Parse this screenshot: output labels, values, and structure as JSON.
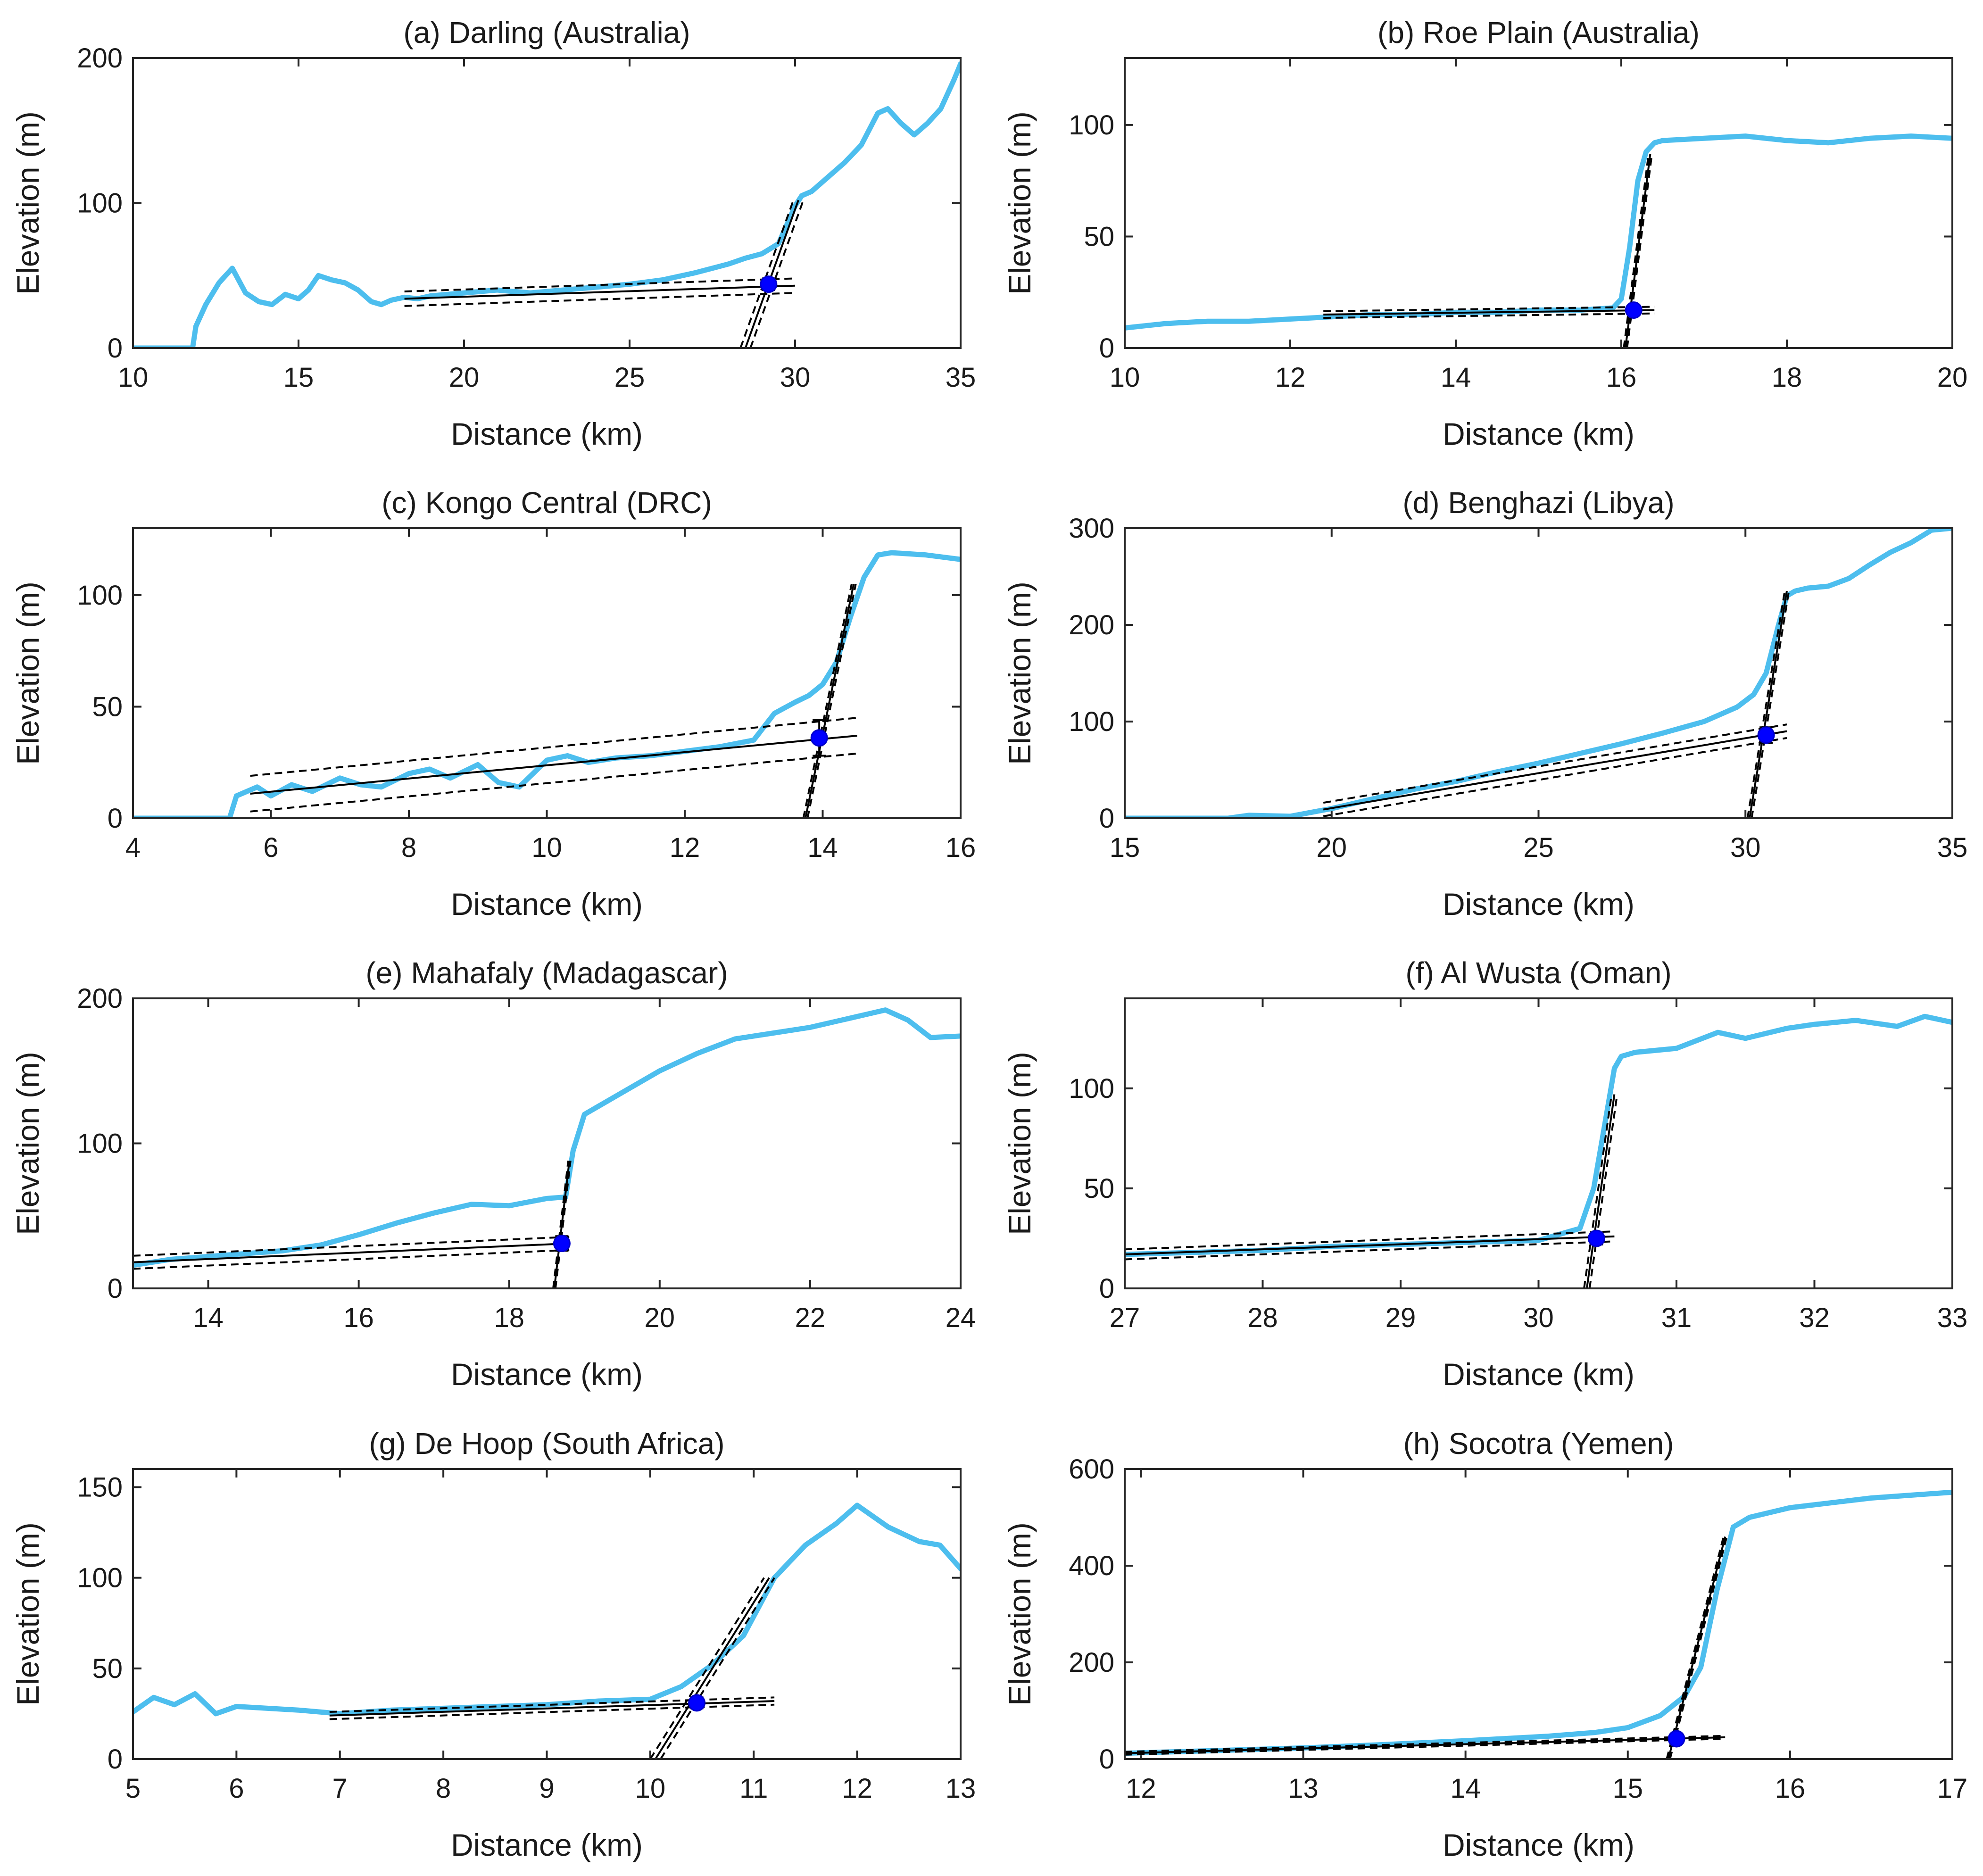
{
  "chart_data": [
    {
      "type": "line",
      "title": "(a) Darling (Australia)",
      "xlabel": "Distance (km)",
      "ylabel": "Elevation (m)",
      "xlim": [
        10,
        35
      ],
      "ylim": [
        0,
        200
      ],
      "xticks": [
        10,
        15,
        20,
        25,
        30,
        35
      ],
      "yticks": [
        0,
        100,
        200
      ],
      "series": [
        {
          "x": [
            10,
            11.8,
            11.9,
            12.2,
            12.6,
            13.0,
            13.4,
            13.8,
            14.2,
            14.6,
            15.0,
            15.3,
            15.6,
            16.0,
            16.4,
            16.8,
            17.2,
            17.5,
            17.8,
            18.2,
            18.6,
            19.0,
            20.0,
            21.0,
            22.0,
            23.0,
            24.0,
            25.0,
            26.0,
            27.0,
            28.0,
            28.5,
            29.0,
            29.5,
            30.0,
            30.2,
            30.5,
            31.0,
            31.5,
            32.0,
            32.5,
            32.8,
            33.2,
            33.6,
            34.0,
            34.4,
            34.8,
            35.0
          ],
          "y": [
            0,
            0,
            15,
            30,
            45,
            55,
            38,
            32,
            30,
            37,
            34,
            40,
            50,
            47,
            45,
            40,
            32,
            30,
            33,
            35,
            34,
            36,
            38,
            40,
            38,
            40,
            42,
            44,
            47,
            52,
            58,
            62,
            65,
            72,
            98,
            105,
            108,
            118,
            128,
            140,
            162,
            165,
            155,
            147,
            155,
            165,
            185,
            196
          ]
        }
      ],
      "fit_lower": {
        "x": [
          18.2,
          30.0
        ],
        "y": [
          34,
          43
        ],
        "ci": 5
      },
      "fit_upper": {
        "x": [
          28.5,
          30.1
        ],
        "y": [
          0,
          102
        ],
        "ci_x": 0.15
      },
      "intersection": {
        "x": 29.2,
        "y": 44,
        "err": 4
      }
    },
    {
      "type": "line",
      "title": "(b) Roe Plain (Australia)",
      "xlabel": "Distance (km)",
      "ylabel": "Elevation (m)",
      "xlim": [
        10,
        20
      ],
      "ylim": [
        0,
        130
      ],
      "xticks": [
        10,
        12,
        14,
        16,
        18,
        20
      ],
      "yticks": [
        0,
        50,
        100
      ],
      "series": [
        {
          "x": [
            10,
            10.5,
            11.0,
            11.5,
            12.0,
            12.5,
            13.0,
            13.5,
            14.0,
            14.5,
            15.0,
            15.5,
            15.9,
            16.0,
            16.1,
            16.2,
            16.3,
            16.4,
            16.5,
            17.0,
            17.5,
            18.0,
            18.5,
            19.0,
            19.5,
            20.0
          ],
          "y": [
            9,
            11,
            12,
            12,
            13,
            14,
            15,
            15,
            16,
            16,
            17,
            17,
            18,
            22,
            45,
            75,
            88,
            92,
            93,
            94,
            95,
            93,
            92,
            94,
            95,
            94
          ]
        }
      ],
      "fit_lower": {
        "x": [
          12.4,
          16.4
        ],
        "y": [
          15,
          17
        ],
        "ci": 1.5
      },
      "fit_upper": {
        "x": [
          16.05,
          16.35
        ],
        "y": [
          0,
          87
        ],
        "ci_x": 0.02
      },
      "intersection": {
        "x": 16.15,
        "y": 17,
        "err": 2
      }
    },
    {
      "type": "line",
      "title": "(c) Kongo Central (DRC)",
      "xlabel": "Distance (km)",
      "ylabel": "Elevation (m)",
      "xlim": [
        4,
        16
      ],
      "ylim": [
        0,
        130
      ],
      "xticks": [
        4,
        6,
        8,
        10,
        12,
        14,
        16
      ],
      "yticks": [
        0,
        50,
        100
      ],
      "series": [
        {
          "x": [
            4,
            5.4,
            5.5,
            5.8,
            6.0,
            6.3,
            6.6,
            7.0,
            7.3,
            7.6,
            8.0,
            8.3,
            8.6,
            9.0,
            9.3,
            9.6,
            10.0,
            10.3,
            10.6,
            11.0,
            11.5,
            12.0,
            12.5,
            13.0,
            13.3,
            13.6,
            13.8,
            14.0,
            14.2,
            14.4,
            14.6,
            14.8,
            15.0,
            15.5,
            16.0
          ],
          "y": [
            0,
            0,
            10,
            14,
            10,
            15,
            12,
            18,
            15,
            14,
            20,
            22,
            18,
            24,
            16,
            14,
            26,
            28,
            25,
            27,
            28,
            30,
            32,
            35,
            47,
            52,
            55,
            60,
            70,
            90,
            108,
            118,
            119,
            118,
            116
          ]
        }
      ],
      "fit_lower": {
        "x": [
          5.7,
          14.5
        ],
        "y": [
          11,
          37
        ],
        "ci": 8
      },
      "fit_upper": {
        "x": [
          13.75,
          14.45
        ],
        "y": [
          0,
          105
        ],
        "ci_x": 0.03
      },
      "intersection": {
        "x": 13.95,
        "y": 36,
        "err": 8
      }
    },
    {
      "type": "line",
      "title": "(d) Benghazi (Libya)",
      "xlabel": "Distance (km)",
      "ylabel": "Elevation (m)",
      "xlim": [
        15,
        35
      ],
      "ylim": [
        0,
        300
      ],
      "xticks": [
        15,
        20,
        25,
        30,
        35
      ],
      "yticks": [
        0,
        100,
        200,
        300
      ],
      "series": [
        {
          "x": [
            15,
            17.5,
            18.0,
            19.0,
            19.5,
            20.0,
            21.0,
            22.0,
            23.0,
            24.0,
            25.0,
            26.0,
            27.0,
            28.0,
            29.0,
            29.8,
            30.2,
            30.5,
            30.8,
            31.0,
            31.2,
            31.5,
            32.0,
            32.5,
            33.0,
            33.5,
            34.0,
            34.5,
            35.0
          ],
          "y": [
            0,
            0,
            3,
            2,
            6,
            10,
            20,
            30,
            38,
            48,
            57,
            67,
            77,
            88,
            100,
            115,
            128,
            150,
            200,
            230,
            235,
            238,
            240,
            248,
            262,
            275,
            285,
            298,
            300
          ]
        }
      ],
      "fit_lower": {
        "x": [
          19.8,
          31.0
        ],
        "y": [
          9,
          90
        ],
        "ci": 7
      },
      "fit_upper": {
        "x": [
          30.1,
          31.0
        ],
        "y": [
          0,
          235
        ],
        "ci_x": 0.05
      },
      "intersection": {
        "x": 30.5,
        "y": 86,
        "err": 8
      }
    },
    {
      "type": "line",
      "title": "(e) Mahafaly (Madagascar)",
      "xlabel": "Distance (km)",
      "ylabel": "Elevation (m)",
      "xlim": [
        13,
        24
      ],
      "ylim": [
        0,
        200
      ],
      "xticks": [
        14,
        16,
        18,
        20,
        22,
        24
      ],
      "yticks": [
        0,
        100,
        200
      ],
      "series": [
        {
          "x": [
            13,
            13.5,
            14.0,
            14.5,
            15.0,
            15.5,
            16.0,
            16.5,
            17.0,
            17.5,
            18.0,
            18.5,
            18.75,
            18.85,
            19.0,
            19.5,
            20.0,
            20.5,
            21.0,
            21.5,
            22.0,
            22.5,
            23.0,
            23.3,
            23.6,
            24.0
          ],
          "y": [
            16,
            20,
            22,
            24,
            26,
            30,
            37,
            45,
            52,
            58,
            57,
            62,
            63,
            95,
            120,
            135,
            150,
            162,
            172,
            176,
            180,
            186,
            192,
            185,
            173,
            174
          ]
        }
      ],
      "fit_lower": {
        "x": [
          13.0,
          18.8
        ],
        "y": [
          18,
          31
        ],
        "ci": 4.5
      },
      "fit_upper": {
        "x": [
          18.6,
          18.8
        ],
        "y": [
          0,
          88
        ],
        "ci_x": 0.015
      },
      "intersection": {
        "x": 18.7,
        "y": 31,
        "err": 5
      }
    },
    {
      "type": "line",
      "title": "(f) Al Wusta (Oman)",
      "xlabel": "Distance (km)",
      "ylabel": "Elevation (m)",
      "xlim": [
        27,
        33
      ],
      "ylim": [
        0,
        145
      ],
      "xticks": [
        27,
        28,
        29,
        30,
        31,
        32,
        33
      ],
      "yticks": [
        0,
        50,
        100
      ],
      "series": [
        {
          "x": [
            27,
            27.5,
            28.0,
            28.5,
            29.0,
            29.5,
            30.0,
            30.3,
            30.4,
            30.5,
            30.55,
            30.6,
            30.7,
            31.0,
            31.3,
            31.5,
            31.8,
            32.0,
            32.3,
            32.6,
            32.8,
            33.0
          ],
          "y": [
            17,
            18,
            19,
            21,
            22,
            23,
            24,
            30,
            50,
            90,
            110,
            116,
            118,
            120,
            128,
            125,
            130,
            132,
            134,
            131,
            136,
            133
          ]
        }
      ],
      "fit_lower": {
        "x": [
          27.0,
          30.55
        ],
        "y": [
          17,
          26
        ],
        "ci": 2.5
      },
      "fit_upper": {
        "x": [
          30.35,
          30.55
        ],
        "y": [
          0,
          97
        ],
        "ci_x": 0.02
      },
      "intersection": {
        "x": 30.42,
        "y": 25,
        "err": 3
      }
    },
    {
      "type": "line",
      "title": "(g) De Hoop (South Africa)",
      "xlabel": "Distance (km)",
      "ylabel": "Elevation (m)",
      "xlim": [
        5,
        13
      ],
      "ylim": [
        0,
        160
      ],
      "xticks": [
        5,
        6,
        7,
        8,
        9,
        10,
        11,
        12,
        13
      ],
      "yticks": [
        0,
        50,
        100,
        150
      ],
      "series": [
        {
          "x": [
            5,
            5.2,
            5.4,
            5.6,
            5.8,
            6.0,
            6.3,
            6.6,
            7.0,
            7.5,
            8.0,
            8.5,
            9.0,
            9.5,
            10.0,
            10.3,
            10.6,
            10.9,
            11.2,
            11.5,
            11.8,
            12.0,
            12.3,
            12.6,
            12.8,
            13.0
          ],
          "y": [
            26,
            34,
            30,
            36,
            25,
            29,
            28,
            27,
            25,
            27,
            28,
            29,
            30,
            32,
            33,
            40,
            52,
            68,
            100,
            118,
            130,
            140,
            128,
            120,
            118,
            105
          ]
        }
      ],
      "fit_lower": {
        "x": [
          6.9,
          11.2
        ],
        "y": [
          24,
          32
        ],
        "ci": 2
      },
      "fit_upper": {
        "x": [
          10.05,
          11.15
        ],
        "y": [
          0,
          100
        ],
        "ci_x": 0.05
      },
      "intersection": {
        "x": 10.45,
        "y": 31,
        "err": 3
      }
    },
    {
      "type": "line",
      "title": "(h) Socotra (Yemen)",
      "xlabel": "Distance (km)",
      "ylabel": "Elevation (m)",
      "xlim": [
        11.9,
        17
      ],
      "ylim": [
        0,
        600
      ],
      "xticks": [
        12,
        13,
        14,
        15,
        16,
        17
      ],
      "yticks": [
        0,
        200,
        400,
        600
      ],
      "series": [
        {
          "x": [
            11.9,
            12.5,
            13.0,
            13.5,
            14.0,
            14.5,
            14.8,
            15.0,
            15.2,
            15.35,
            15.45,
            15.55,
            15.65,
            15.75,
            16.0,
            16.5,
            17.0
          ],
          "y": [
            12,
            18,
            23,
            30,
            38,
            47,
            55,
            65,
            90,
            130,
            190,
            350,
            480,
            500,
            520,
            540,
            552
          ]
        }
      ],
      "fit_lower": {
        "x": [
          11.9,
          15.6
        ],
        "y": [
          12,
          45
        ],
        "ci": 3
      },
      "fit_upper": {
        "x": [
          15.25,
          15.6
        ],
        "y": [
          0,
          460
        ],
        "ci_x": 0.01
      },
      "intersection": {
        "x": 15.3,
        "y": 42,
        "err": 4
      }
    }
  ]
}
